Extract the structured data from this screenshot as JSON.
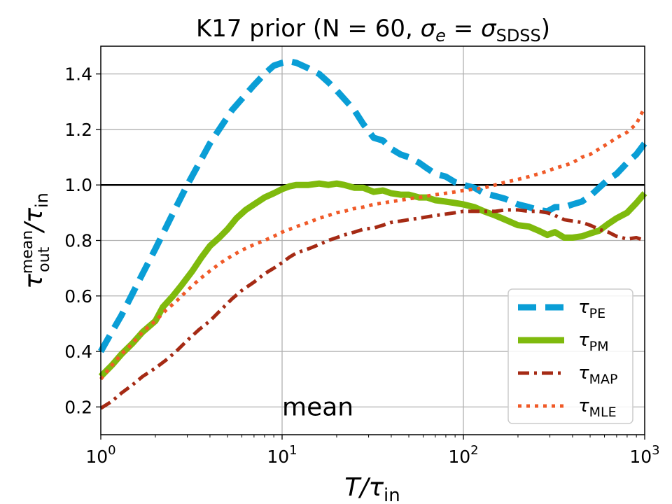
{
  "chart_data": {
    "type": "line",
    "title_text": "K17 prior (N = 60, ",
    "title_sigma": "σ",
    "title_sub_e": "e",
    "title_eq": " = ",
    "title_sub_sdss": "SDSS",
    "title_close": ")",
    "xlabel_main": "T/τ",
    "xlabel_sub": "in",
    "ylabel_tau": "τ",
    "ylabel_sup": "mean",
    "ylabel_sub": "out",
    "ylabel_slash": "/τ",
    "ylabel_sub2": "in",
    "x_scale": "log",
    "xlim": [
      1,
      1000
    ],
    "ylim": [
      0.1,
      1.5
    ],
    "xticks": [
      {
        "value": 1,
        "base": "10",
        "exp": "0"
      },
      {
        "value": 10,
        "base": "10",
        "exp": "1"
      },
      {
        "value": 100,
        "base": "10",
        "exp": "2"
      },
      {
        "value": 1000,
        "base": "10",
        "exp": "3"
      }
    ],
    "yticks": [
      {
        "value": 0.2,
        "label": "0.2"
      },
      {
        "value": 0.4,
        "label": "0.4"
      },
      {
        "value": 0.6,
        "label": "0.6"
      },
      {
        "value": 0.8,
        "label": "0.8"
      },
      {
        "value": 1.0,
        "label": "1.0"
      },
      {
        "value": 1.2,
        "label": "1.2"
      },
      {
        "value": 1.4,
        "label": "1.4"
      }
    ],
    "grid": true,
    "reference_line": {
      "y": 1.0,
      "color": "#000000"
    },
    "annotation": {
      "text": "mean",
      "x": 10,
      "y": 0.2
    },
    "legend_position": "lower right",
    "series": [
      {
        "name_base": "τ",
        "name_sub": "PE",
        "color": "#0a9ed6",
        "style": "dashed",
        "points": [
          [
            1,
            0.4
          ],
          [
            1.15,
            0.47
          ],
          [
            1.3,
            0.53
          ],
          [
            1.5,
            0.61
          ],
          [
            1.7,
            0.68
          ],
          [
            2,
            0.77
          ],
          [
            2.3,
            0.85
          ],
          [
            2.6,
            0.92
          ],
          [
            3,
            1.0
          ],
          [
            3.5,
            1.08
          ],
          [
            4,
            1.15
          ],
          [
            4.6,
            1.21
          ],
          [
            5.3,
            1.27
          ],
          [
            6,
            1.31
          ],
          [
            7,
            1.36
          ],
          [
            8,
            1.4
          ],
          [
            9,
            1.43
          ],
          [
            10,
            1.44
          ],
          [
            11,
            1.445
          ],
          [
            12,
            1.44
          ],
          [
            14,
            1.42
          ],
          [
            16,
            1.4
          ],
          [
            18,
            1.37
          ],
          [
            20,
            1.34
          ],
          [
            22,
            1.31
          ],
          [
            25,
            1.27
          ],
          [
            28,
            1.22
          ],
          [
            32,
            1.17
          ],
          [
            36,
            1.16
          ],
          [
            40,
            1.13
          ],
          [
            45,
            1.11
          ],
          [
            50,
            1.1
          ],
          [
            57,
            1.08
          ],
          [
            63,
            1.06
          ],
          [
            70,
            1.04
          ],
          [
            80,
            1.03
          ],
          [
            90,
            1.01
          ],
          [
            100,
            1.0
          ],
          [
            115,
            0.99
          ],
          [
            130,
            0.97
          ],
          [
            150,
            0.96
          ],
          [
            170,
            0.95
          ],
          [
            200,
            0.93
          ],
          [
            230,
            0.92
          ],
          [
            260,
            0.91
          ],
          [
            290,
            0.905
          ],
          [
            320,
            0.92
          ],
          [
            360,
            0.92
          ],
          [
            400,
            0.93
          ],
          [
            450,
            0.94
          ],
          [
            500,
            0.96
          ],
          [
            560,
            0.99
          ],
          [
            630,
            1.02
          ],
          [
            700,
            1.04
          ],
          [
            800,
            1.08
          ],
          [
            900,
            1.11
          ],
          [
            1000,
            1.15
          ]
        ]
      },
      {
        "name_base": "τ",
        "name_sub": "PM",
        "color": "#7fba0d",
        "style": "solid",
        "points": [
          [
            1,
            0.31
          ],
          [
            1.15,
            0.35
          ],
          [
            1.3,
            0.39
          ],
          [
            1.5,
            0.43
          ],
          [
            1.7,
            0.47
          ],
          [
            2,
            0.51
          ],
          [
            2.2,
            0.56
          ],
          [
            2.5,
            0.6
          ],
          [
            2.8,
            0.64
          ],
          [
            3.2,
            0.69
          ],
          [
            3.6,
            0.74
          ],
          [
            4,
            0.78
          ],
          [
            4.5,
            0.81
          ],
          [
            5,
            0.84
          ],
          [
            5.6,
            0.88
          ],
          [
            6.3,
            0.91
          ],
          [
            7,
            0.93
          ],
          [
            8,
            0.955
          ],
          [
            9,
            0.97
          ],
          [
            10,
            0.985
          ],
          [
            11,
            0.995
          ],
          [
            12,
            1.0
          ],
          [
            14,
            1.0
          ],
          [
            16,
            1.005
          ],
          [
            18,
            1.0
          ],
          [
            20,
            1.005
          ],
          [
            22,
            1.0
          ],
          [
            25,
            0.99
          ],
          [
            28,
            0.99
          ],
          [
            32,
            0.975
          ],
          [
            36,
            0.98
          ],
          [
            40,
            0.97
          ],
          [
            45,
            0.965
          ],
          [
            50,
            0.965
          ],
          [
            57,
            0.955
          ],
          [
            63,
            0.955
          ],
          [
            70,
            0.945
          ],
          [
            80,
            0.94
          ],
          [
            90,
            0.935
          ],
          [
            100,
            0.93
          ],
          [
            115,
            0.92
          ],
          [
            130,
            0.905
          ],
          [
            150,
            0.89
          ],
          [
            170,
            0.875
          ],
          [
            200,
            0.855
          ],
          [
            230,
            0.85
          ],
          [
            260,
            0.835
          ],
          [
            290,
            0.82
          ],
          [
            320,
            0.83
          ],
          [
            360,
            0.81
          ],
          [
            400,
            0.81
          ],
          [
            450,
            0.815
          ],
          [
            500,
            0.825
          ],
          [
            560,
            0.835
          ],
          [
            630,
            0.86
          ],
          [
            700,
            0.88
          ],
          [
            800,
            0.9
          ],
          [
            900,
            0.935
          ],
          [
            1000,
            0.97
          ]
        ]
      },
      {
        "name_base": "τ",
        "name_sub": "MAP",
        "color": "#a52a14",
        "style": "dashdot",
        "points": [
          [
            1,
            0.195
          ],
          [
            1.15,
            0.22
          ],
          [
            1.3,
            0.25
          ],
          [
            1.5,
            0.28
          ],
          [
            1.7,
            0.31
          ],
          [
            2,
            0.34
          ],
          [
            2.3,
            0.37
          ],
          [
            2.6,
            0.4
          ],
          [
            3,
            0.44
          ],
          [
            3.5,
            0.48
          ],
          [
            4,
            0.51
          ],
          [
            4.6,
            0.55
          ],
          [
            5.3,
            0.59
          ],
          [
            6,
            0.62
          ],
          [
            7,
            0.65
          ],
          [
            8,
            0.68
          ],
          [
            9,
            0.7
          ],
          [
            10,
            0.72
          ],
          [
            11,
            0.74
          ],
          [
            12,
            0.755
          ],
          [
            14,
            0.77
          ],
          [
            16,
            0.785
          ],
          [
            18,
            0.8
          ],
          [
            20,
            0.81
          ],
          [
            22,
            0.82
          ],
          [
            25,
            0.83
          ],
          [
            28,
            0.84
          ],
          [
            32,
            0.845
          ],
          [
            36,
            0.855
          ],
          [
            40,
            0.865
          ],
          [
            45,
            0.87
          ],
          [
            50,
            0.875
          ],
          [
            57,
            0.88
          ],
          [
            63,
            0.885
          ],
          [
            70,
            0.89
          ],
          [
            80,
            0.895
          ],
          [
            90,
            0.9
          ],
          [
            100,
            0.905
          ],
          [
            115,
            0.905
          ],
          [
            130,
            0.905
          ],
          [
            150,
            0.905
          ],
          [
            170,
            0.91
          ],
          [
            200,
            0.91
          ],
          [
            230,
            0.905
          ],
          [
            260,
            0.905
          ],
          [
            290,
            0.9
          ],
          [
            320,
            0.89
          ],
          [
            360,
            0.875
          ],
          [
            400,
            0.87
          ],
          [
            450,
            0.865
          ],
          [
            500,
            0.855
          ],
          [
            560,
            0.84
          ],
          [
            630,
            0.83
          ],
          [
            700,
            0.815
          ],
          [
            800,
            0.805
          ],
          [
            900,
            0.81
          ],
          [
            1000,
            0.8
          ]
        ]
      },
      {
        "name_base": "τ",
        "name_sub": "MLE",
        "color": "#f05a28",
        "style": "dotted",
        "points": [
          [
            1,
            0.3
          ],
          [
            1.15,
            0.35
          ],
          [
            1.3,
            0.39
          ],
          [
            1.5,
            0.43
          ],
          [
            1.7,
            0.47
          ],
          [
            2,
            0.51
          ],
          [
            2.3,
            0.55
          ],
          [
            2.6,
            0.58
          ],
          [
            3,
            0.62
          ],
          [
            3.5,
            0.66
          ],
          [
            4,
            0.69
          ],
          [
            4.6,
            0.72
          ],
          [
            5.3,
            0.745
          ],
          [
            6,
            0.765
          ],
          [
            7,
            0.785
          ],
          [
            8,
            0.8
          ],
          [
            9,
            0.815
          ],
          [
            10,
            0.83
          ],
          [
            11,
            0.84
          ],
          [
            12,
            0.85
          ],
          [
            14,
            0.865
          ],
          [
            16,
            0.88
          ],
          [
            18,
            0.89
          ],
          [
            20,
            0.9
          ],
          [
            22,
            0.905
          ],
          [
            25,
            0.915
          ],
          [
            28,
            0.92
          ],
          [
            32,
            0.93
          ],
          [
            36,
            0.935
          ],
          [
            40,
            0.94
          ],
          [
            45,
            0.945
          ],
          [
            50,
            0.95
          ],
          [
            57,
            0.955
          ],
          [
            63,
            0.96
          ],
          [
            70,
            0.965
          ],
          [
            80,
            0.97
          ],
          [
            90,
            0.975
          ],
          [
            100,
            0.98
          ],
          [
            115,
            0.985
          ],
          [
            130,
            0.99
          ],
          [
            150,
            1.0
          ],
          [
            170,
            1.01
          ],
          [
            200,
            1.02
          ],
          [
            230,
            1.03
          ],
          [
            260,
            1.04
          ],
          [
            290,
            1.05
          ],
          [
            320,
            1.06
          ],
          [
            360,
            1.07
          ],
          [
            400,
            1.08
          ],
          [
            450,
            1.1
          ],
          [
            500,
            1.11
          ],
          [
            560,
            1.13
          ],
          [
            630,
            1.15
          ],
          [
            700,
            1.17
          ],
          [
            800,
            1.19
          ],
          [
            900,
            1.22
          ],
          [
            1000,
            1.28
          ]
        ]
      }
    ]
  }
}
